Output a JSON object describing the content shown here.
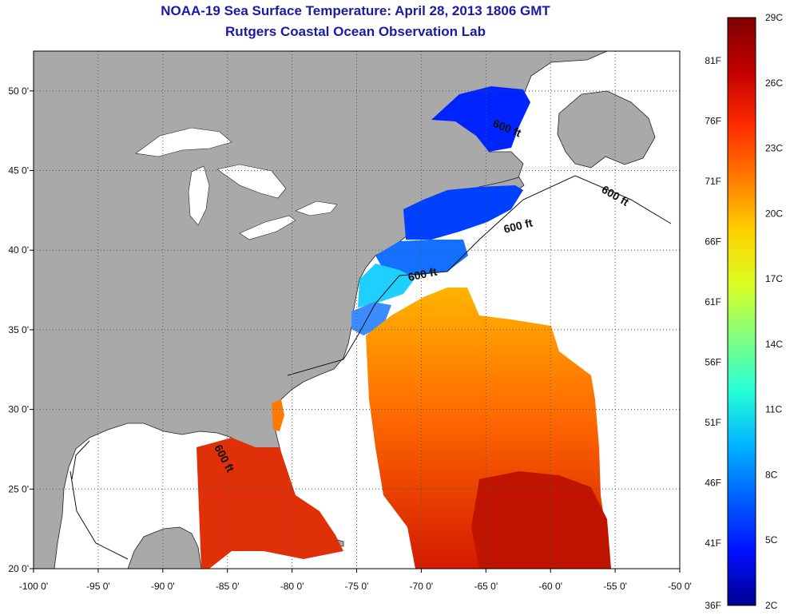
{
  "title": "NOAA-19 Sea Surface Temperature:  April 28, 2013 1806 GMT",
  "subtitle": "Rutgers Coastal Ocean Observation Lab",
  "map": {
    "x_ticks": [
      "-100 0'",
      "-95 0'",
      "-90 0'",
      "-85 0'",
      "-80 0'",
      "-75 0'",
      "-70 0'",
      "-65 0'",
      "-60 0'",
      "-55 0'",
      "-50 0'"
    ],
    "y_ticks": [
      "20 0'",
      "25 0'",
      "30 0'",
      "35 0'",
      "40 0'",
      "45 0'",
      "50 0'"
    ],
    "lon_range": [
      -100,
      -50
    ],
    "lat_range": [
      20,
      52.5
    ],
    "isobath_label": "600 ft",
    "land_color": "#a9a9a9",
    "water_color": "#ffffff"
  },
  "colorbar": {
    "celsius_ticks": [
      "29C",
      "26C",
      "23C",
      "20C",
      "17C",
      "14C",
      "11C",
      "8C",
      "5C",
      "2C"
    ],
    "fahrenheit_ticks": [
      "81F",
      "76F",
      "71F",
      "66F",
      "61F",
      "56F",
      "51F",
      "46F",
      "41F",
      "36F"
    ],
    "colors": [
      "#7f0000",
      "#c00000",
      "#ff2a00",
      "#ff7a00",
      "#ffd200",
      "#d9ff24",
      "#7fff7f",
      "#24ffd9",
      "#00b4ff",
      "#0060ff",
      "#0010ff",
      "#00008f"
    ]
  }
}
